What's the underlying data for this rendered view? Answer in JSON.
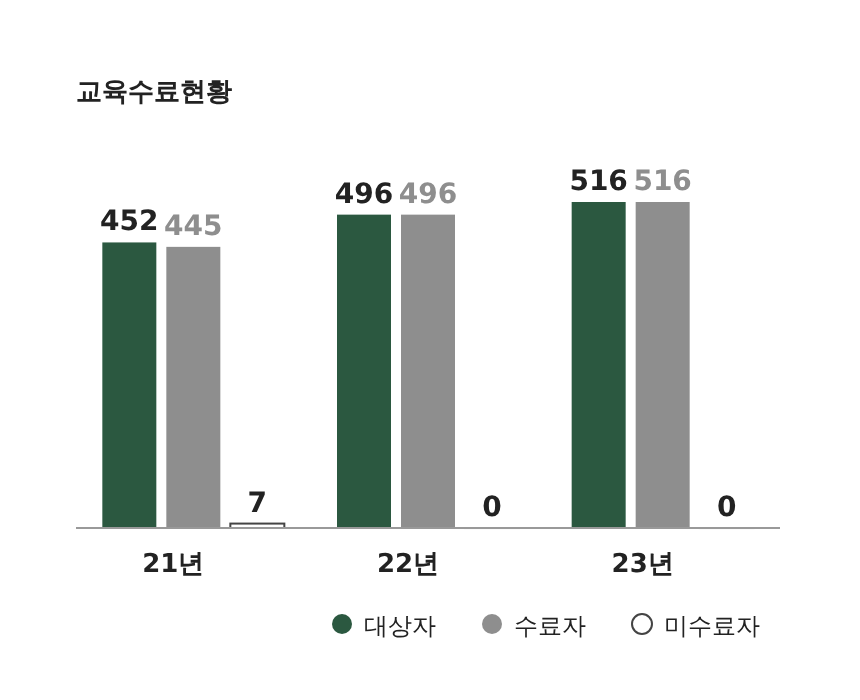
{
  "chart_data": {
    "type": "bar",
    "title": "교육수료현황",
    "categories": [
      "21년",
      "22년",
      "23년"
    ],
    "series": [
      {
        "name": "대상자",
        "color": "#2b5840",
        "values": [
          452,
          496,
          516
        ]
      },
      {
        "name": "수료자",
        "color": "#8e8e8e",
        "values": [
          445,
          496,
          516
        ]
      },
      {
        "name": "미수료자",
        "color": "#ffffff",
        "values": [
          7,
          0,
          0
        ]
      }
    ],
    "data_labels": true,
    "legend": "bottom right"
  }
}
